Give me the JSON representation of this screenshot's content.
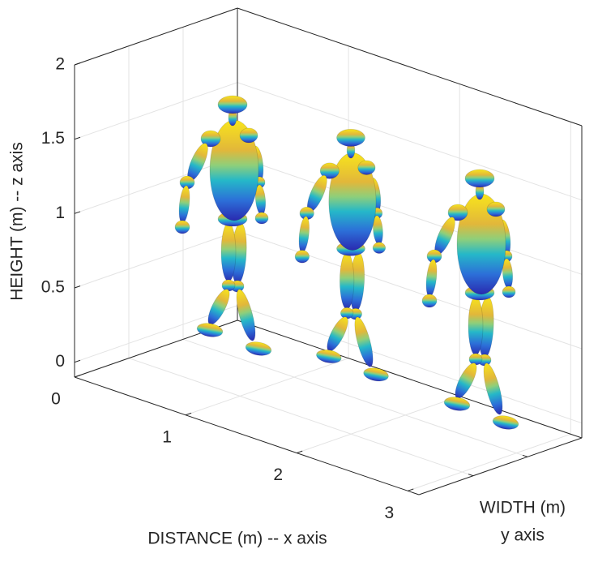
{
  "chart_data": {
    "type": "scatter3d",
    "xlabel": "DISTANCE (m) -- x axis",
    "ylabel": [
      "WIDTH (m)",
      "y axis"
    ],
    "zlabel": "HEIGHT (m) -- z axis",
    "xlim": [
      0,
      3.1
    ],
    "xticks": [
      0,
      1,
      2,
      3
    ],
    "zlim": [
      -0.1,
      2
    ],
    "zticks": [
      0,
      0.5,
      1,
      1.5,
      2
    ],
    "grid": true
  }
}
